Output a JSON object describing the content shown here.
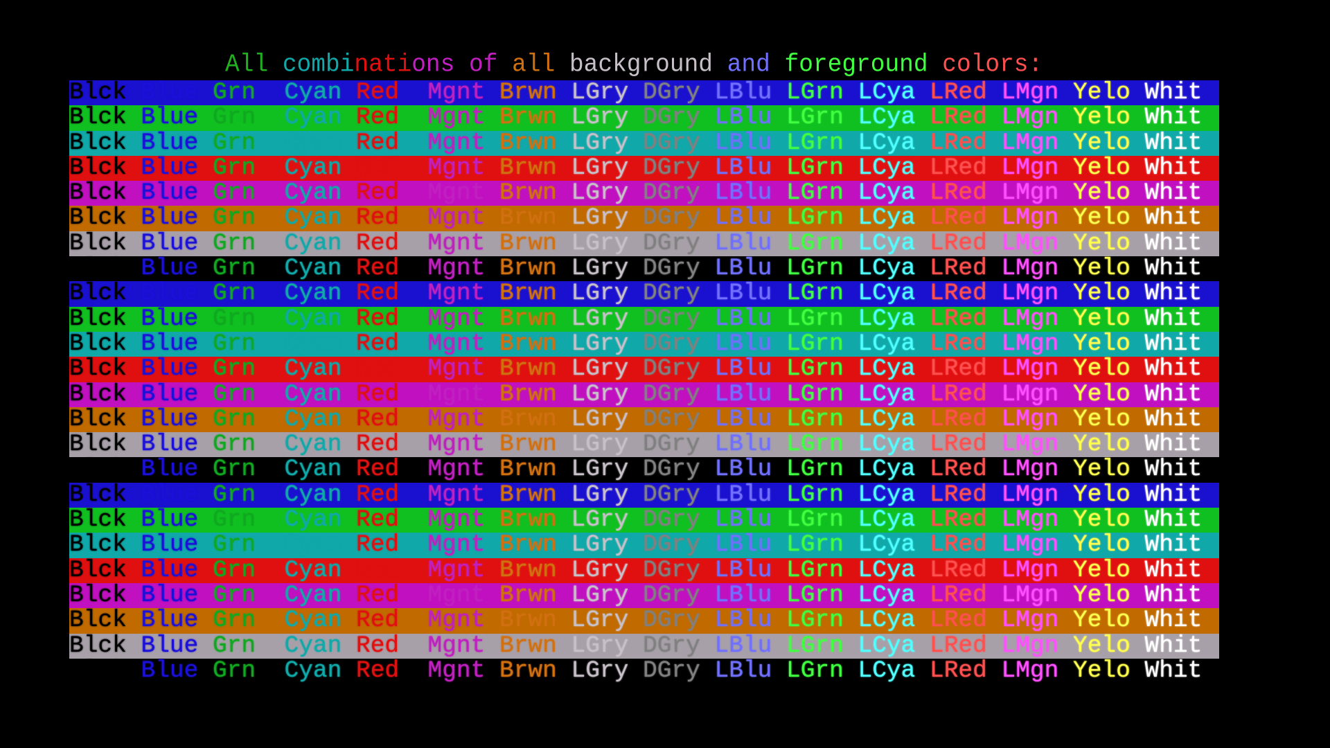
{
  "title_segments": [
    {
      "text": "All ",
      "color": "#20b020"
    },
    {
      "text": "combi",
      "color": "#10a8a8"
    },
    {
      "text": "nati",
      "color": "#e01010"
    },
    {
      "text": "ons of ",
      "color": "#c020c0"
    },
    {
      "text": "all ",
      "color": "#d07010"
    },
    {
      "text": "background ",
      "color": "#c8c0c8"
    },
    {
      "text": "and ",
      "color": "#7070ff"
    },
    {
      "text": "foreground ",
      "color": "#40ff40"
    },
    {
      "text": "colors:",
      "color": "#ff5050"
    }
  ],
  "palette": {
    "Blck": "#000000",
    "Blue": "#1a10d8",
    "Grn": "#10a820",
    "Cyan": "#10a8a8",
    "Red": "#e01010",
    "Mgnt": "#c020c0",
    "Brwn": "#d07010",
    "LGry": "#c8c0c8",
    "DGry": "#808080",
    "LBlu": "#7070ff",
    "LGrn": "#40ff40",
    "LCya": "#50ffff",
    "LRed": "#ff5050",
    "LMgn": "#ff50ff",
    "Yelo": "#ffff50",
    "Whit": "#ffffff"
  },
  "backgrounds": {
    "Blue": "#1a10d0",
    "Grn": "#10c020",
    "Cyan": "#10a8a8",
    "Red": "#e01010",
    "Mgnt": "#c010c0",
    "Brwn": "#c06a00",
    "LGry": "#a8a0a8",
    "Blck": "#000000"
  },
  "foreground_labels": [
    "Blck",
    "Blue",
    "Grn",
    "Cyan",
    "Red",
    "Mgnt",
    "Brwn",
    "LGry",
    "DGry",
    "LBlu",
    "LGrn",
    "LCya",
    "LRed",
    "LMgn",
    "Yelo",
    "Whit"
  ],
  "row_backgrounds": [
    "Blue",
    "Grn",
    "Cyan",
    "Red",
    "Mgnt",
    "Brwn",
    "LGry",
    "Blck",
    "Blue",
    "Grn",
    "Cyan",
    "Red",
    "Mgnt",
    "Brwn",
    "LGry",
    "Blck",
    "Blue",
    "Grn",
    "Cyan",
    "Red",
    "Mgnt",
    "Brwn",
    "LGry",
    "Blck"
  ]
}
